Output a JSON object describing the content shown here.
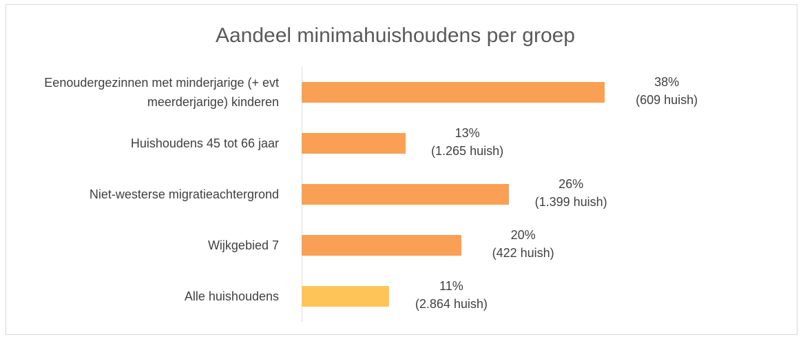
{
  "chart_data": {
    "type": "bar",
    "orientation": "horizontal",
    "title": "Aandeel minimahuishoudens per groep",
    "categories": [
      "Eenoudergezinnen met minderjarige (+ evt meerderjarige) kinderen",
      "Huishoudens 45 tot 66 jaar",
      "Niet-westerse migratieachtergrond",
      "Wijkgebied 7",
      "Alle huishoudens"
    ],
    "values": [
      38,
      13,
      26,
      20,
      11
    ],
    "value_labels": [
      "38%",
      "13%",
      "26%",
      "20%",
      "11%"
    ],
    "count_labels": [
      "(609 huish)",
      "(1.265 huish)",
      "(1.399 huish)",
      "(422 huish)",
      "(2.864 huish)"
    ],
    "colors": [
      "#f9a054",
      "#f9a054",
      "#f9a054",
      "#f9a054",
      "#fec458"
    ],
    "xlim": [
      0,
      60
    ]
  }
}
